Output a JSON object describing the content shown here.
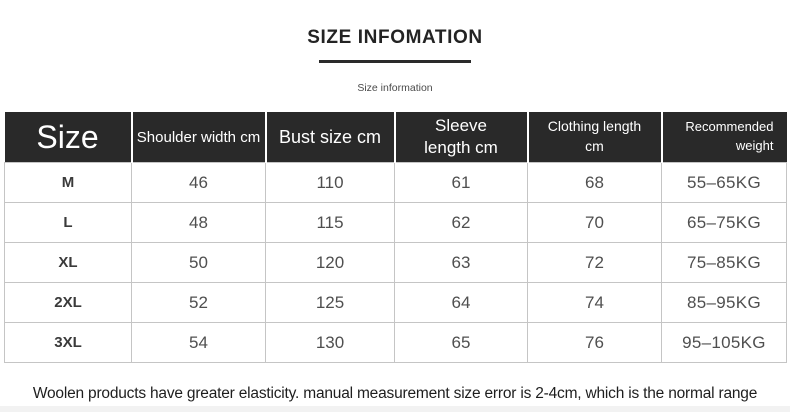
{
  "header": {
    "title": "SIZE INFOMATION",
    "subtitle": "Size information"
  },
  "size_table": {
    "columns": [
      {
        "key": "size",
        "label": "Size"
      },
      {
        "key": "shoulder",
        "label": "Shoulder width cm"
      },
      {
        "key": "bust",
        "label": "Bust size cm"
      },
      {
        "key": "sleeve",
        "label": "Sleeve length cm"
      },
      {
        "key": "clothing",
        "label": "Clothing length cm"
      },
      {
        "key": "weight",
        "label": "Recommended weight"
      }
    ],
    "rows": [
      {
        "size": "M",
        "shoulder": "46",
        "bust": "110",
        "sleeve": "61",
        "clothing": "68",
        "weight": "55–65KG"
      },
      {
        "size": "L",
        "shoulder": "48",
        "bust": "115",
        "sleeve": "62",
        "clothing": "70",
        "weight": "65–75KG"
      },
      {
        "size": "XL",
        "shoulder": "50",
        "bust": "120",
        "sleeve": "63",
        "clothing": "72",
        "weight": "75–85KG"
      },
      {
        "size": "2XL",
        "shoulder": "52",
        "bust": "125",
        "sleeve": "64",
        "clothing": "74",
        "weight": "85–95KG"
      },
      {
        "size": "3XL",
        "shoulder": "54",
        "bust": "130",
        "sleeve": "65",
        "clothing": "76",
        "weight": "95–105KG"
      }
    ]
  },
  "footer": {
    "note": "Woolen products have greater elasticity. manual measurement size error is 2-4cm, which is the normal range"
  },
  "colors": {
    "header_bg": "#292929",
    "header_text": "#ffffff",
    "body_text": "#4f4f4f",
    "size_label_text": "#3a3a3a",
    "cell_border": "#c5c5c5",
    "title_text": "#232323",
    "title_underline": "#2a2a2a",
    "subtitle_text": "#4a4a4a",
    "footer_text": "#1e1e1e",
    "bottom_strip": "#f2f2f2"
  }
}
